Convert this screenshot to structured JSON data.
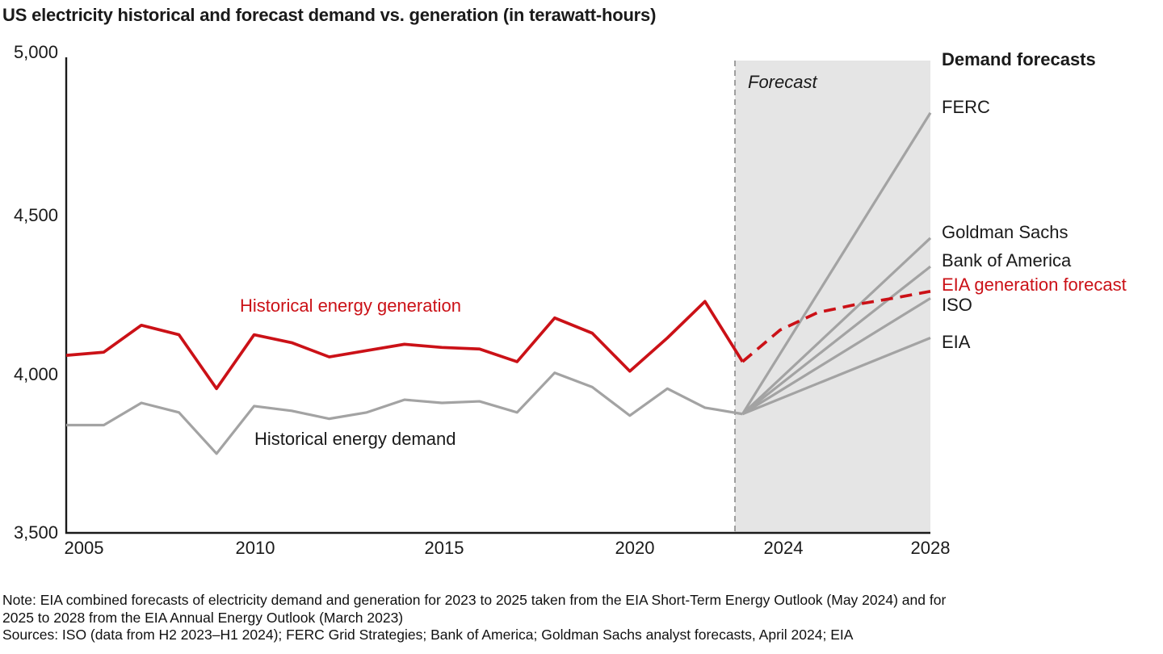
{
  "title": "US electricity historical and forecast demand vs. generation (in terawatt-hours)",
  "colors": {
    "red": "#cb1117",
    "gray_line": "#a3a3a3",
    "forecast_shade": "#e5e5e5",
    "boundary": "#8a8a8a",
    "axis": "#1a1a1a",
    "text": "#1a1a1a"
  },
  "annotations": {
    "forecast_label": "Forecast",
    "generation_label": "Historical energy generation",
    "demand_label": "Historical energy demand"
  },
  "legend": {
    "heading": "Demand forecasts",
    "items": [
      {
        "label": "FERC",
        "color": "#1a1a1a"
      },
      {
        "label": "Goldman Sachs",
        "color": "#1a1a1a"
      },
      {
        "label": "Bank of America",
        "color": "#1a1a1a"
      },
      {
        "label": "EIA generation forecast",
        "color": "#cb1117"
      },
      {
        "label": "ISO",
        "color": "#1a1a1a"
      },
      {
        "label": "EIA",
        "color": "#1a1a1a"
      }
    ]
  },
  "footer": {
    "note": "Note: EIA combined forecasts of electricity demand and generation for 2023 to 2025 taken from the EIA Short-Term Energy Outlook (May 2024) and for 2025 to 2028 from the EIA Annual Energy Outlook (March 2023)",
    "sources": "Sources: ISO (data from H2 2023–H1 2024); FERC Grid Strategies; Bank of America; Goldman Sachs analyst forecasts, April 2024; EIA"
  },
  "chart_data": {
    "type": "line",
    "title": "US electricity historical and forecast demand vs. generation (in terawatt-hours)",
    "ylabel": "terawatt-hours",
    "ylim": [
      3500,
      5000
    ],
    "grid": false,
    "y_ticks": [
      {
        "label": "5,000",
        "value": 5000
      },
      {
        "label": "4,500",
        "value": 4500
      },
      {
        "label": "4,000",
        "value": 4000
      },
      {
        "label": "3,500",
        "value": 3500
      }
    ],
    "x_ticks": [
      {
        "label": "2005",
        "year": 2005
      },
      {
        "label": "2010",
        "year": 2010
      },
      {
        "label": "2015",
        "year": 2015
      },
      {
        "label": "2020",
        "year": 2020
      },
      {
        "label": "2024",
        "year": 2024
      },
      {
        "label": "2028",
        "year": 2028
      }
    ],
    "historical": {
      "years": [
        2005,
        2006,
        2007,
        2008,
        2009,
        2010,
        2011,
        2012,
        2013,
        2014,
        2015,
        2016,
        2017,
        2018,
        2019,
        2020,
        2021,
        2022,
        2023
      ],
      "series": [
        {
          "name": "Historical energy generation",
          "values": [
            4060,
            4070,
            4155,
            4125,
            3955,
            4125,
            4100,
            4055,
            4075,
            4095,
            4085,
            4080,
            4040,
            4178,
            4130,
            4010,
            4115,
            4230,
            4040
          ]
        },
        {
          "name": "Historical energy demand",
          "values": [
            3840,
            3840,
            3910,
            3880,
            3750,
            3900,
            3885,
            3860,
            3880,
            3920,
            3910,
            3915,
            3880,
            4005,
            3960,
            3870,
            3955,
            3895,
            3875
          ]
        }
      ]
    },
    "forecast": {
      "boundary_year_x": 910,
      "start_year": 2023,
      "end_year": 2028,
      "demand_start_value": 3875,
      "demand_forecasts": [
        {
          "name": "FERC",
          "value_2028": 4825
        },
        {
          "name": "Goldman Sachs",
          "value_2028": 4430
        },
        {
          "name": "Bank of America",
          "value_2028": 4340
        },
        {
          "name": "ISO",
          "value_2028": 4240
        },
        {
          "name": "EIA",
          "value_2028": 4115
        }
      ],
      "generation_forecast": {
        "name": "EIA generation forecast",
        "years": [
          2023,
          2024,
          2025,
          2026,
          2027,
          2028
        ],
        "values": [
          4040,
          4140,
          4195,
          4220,
          4240,
          4262
        ]
      }
    }
  }
}
